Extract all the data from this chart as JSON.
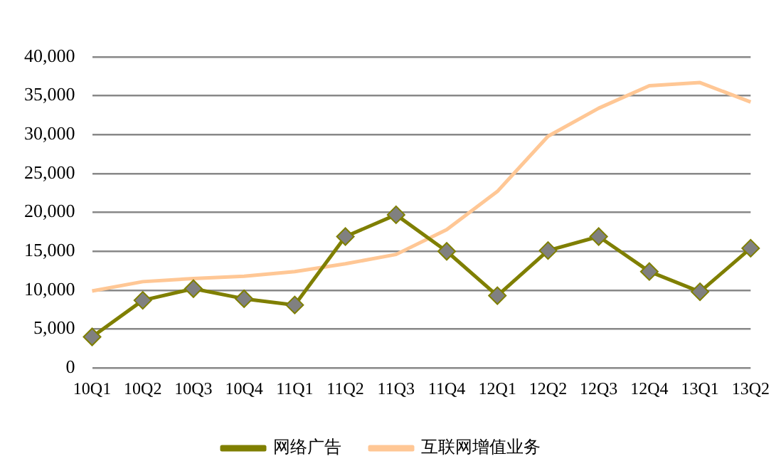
{
  "chart_data": {
    "type": "line",
    "categories": [
      "10Q1",
      "10Q2",
      "10Q3",
      "10Q4",
      "11Q1",
      "11Q2",
      "11Q3",
      "11Q4",
      "12Q1",
      "12Q2",
      "12Q3",
      "12Q4",
      "13Q1",
      "13Q2"
    ],
    "series": [
      {
        "name": "网络广告",
        "color": "#7f7f00",
        "marker": "diamond",
        "values": [
          4000,
          8700,
          10200,
          8900,
          8100,
          16900,
          19700,
          15000,
          9300,
          15100,
          16900,
          12400,
          9800,
          15400
        ]
      },
      {
        "name": "互联网增值业务",
        "color": "#ffc795",
        "marker": "none",
        "values": [
          9900,
          11100,
          11500,
          11800,
          12400,
          13400,
          14600,
          17800,
          22700,
          29800,
          33400,
          36300,
          36700,
          34200
        ]
      }
    ],
    "ylim": [
      0,
      40000
    ],
    "yticks": [
      {
        "value": 0,
        "label": "0"
      },
      {
        "value": 5000,
        "label": "5,000"
      },
      {
        "value": 10000,
        "label": "10,000"
      },
      {
        "value": 15000,
        "label": "15,000"
      },
      {
        "value": 20000,
        "label": "20,000"
      },
      {
        "value": 25000,
        "label": "25,000"
      },
      {
        "value": 30000,
        "label": "30,000"
      },
      {
        "value": 35000,
        "label": "35,000"
      },
      {
        "value": 40000,
        "label": "40,000"
      }
    ],
    "grid": "y",
    "legend": "bottom"
  }
}
